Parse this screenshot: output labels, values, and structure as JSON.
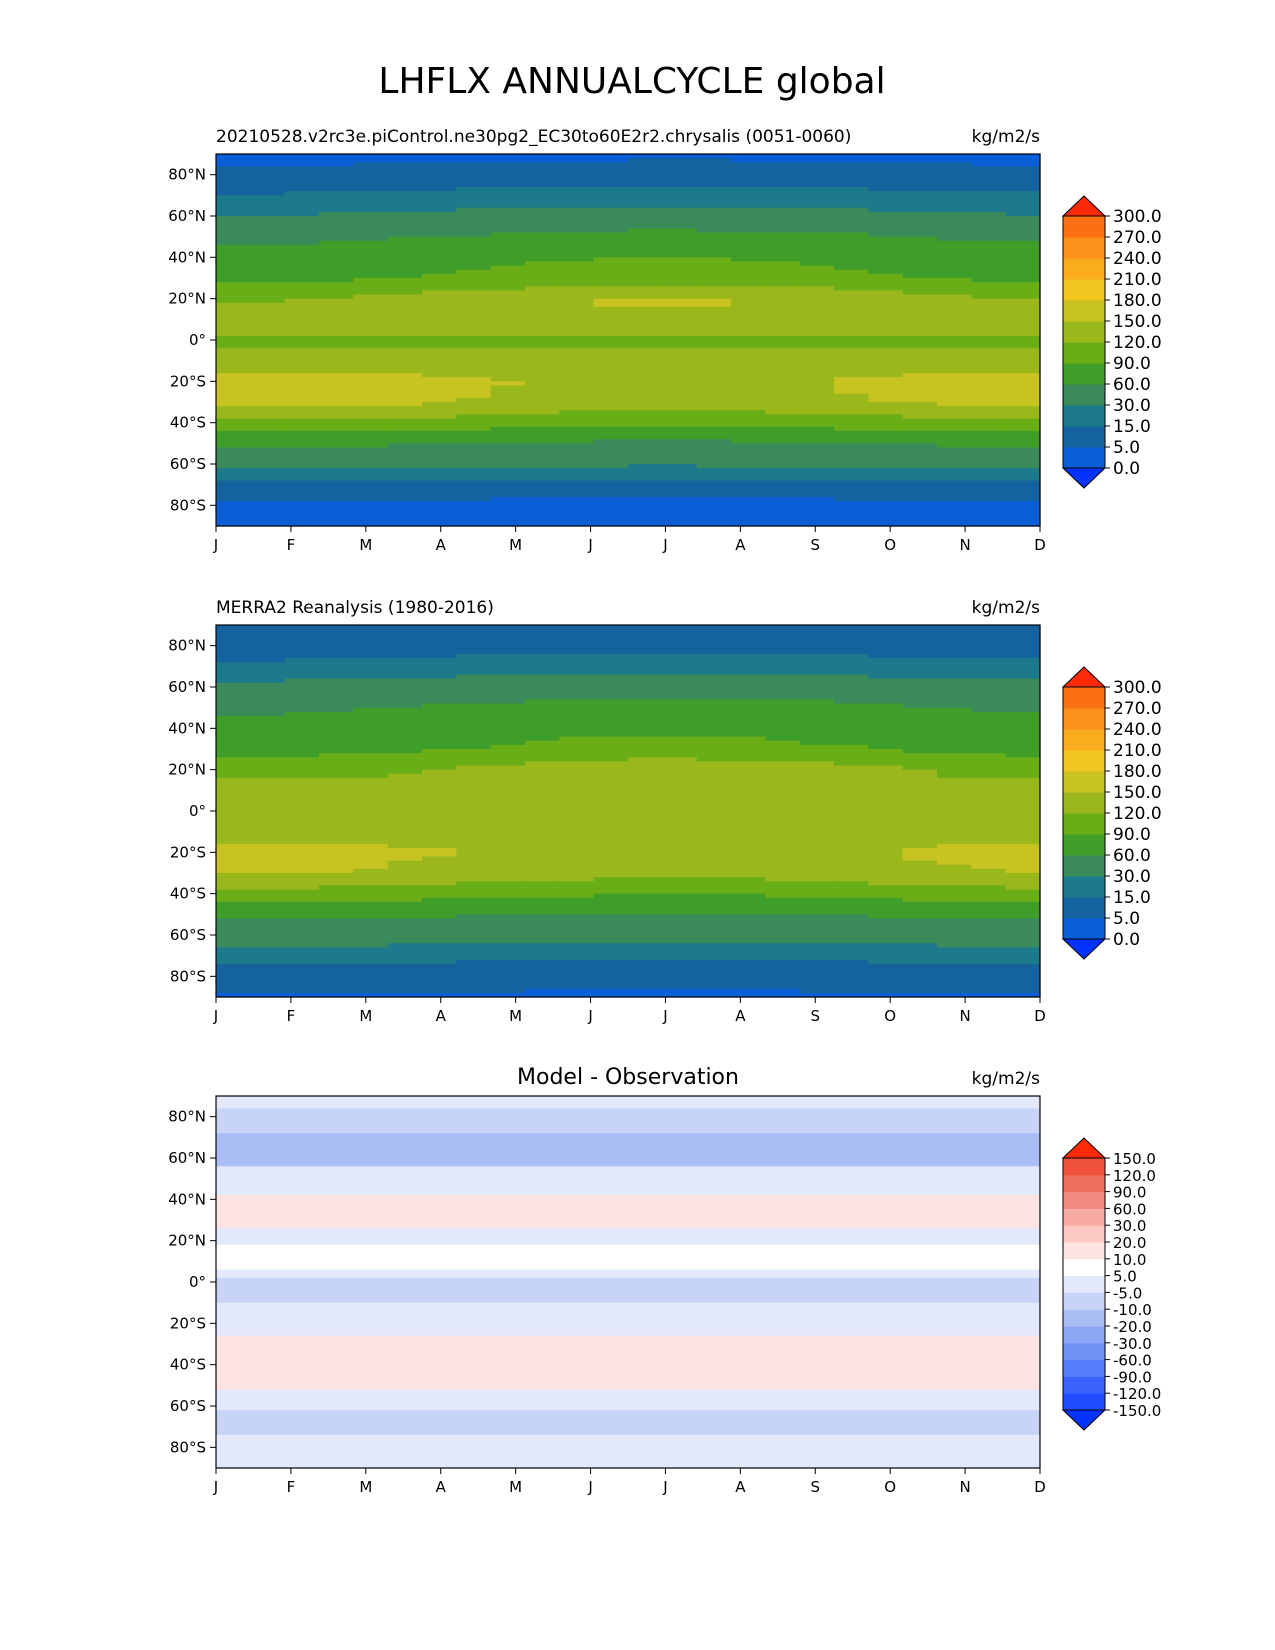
{
  "figure": {
    "title": "LHFLX ANNUALCYCLE global"
  },
  "axes_common": {
    "x_ticks": [
      "J",
      "F",
      "M",
      "A",
      "M",
      "J",
      "J",
      "A",
      "S",
      "O",
      "N",
      "D"
    ],
    "y_ticks": [
      "80°N",
      "60°N",
      "40°N",
      "20°N",
      "0°",
      "20°S",
      "40°S",
      "60°S",
      "80°S"
    ]
  },
  "chart_data": [
    {
      "type": "heatmap",
      "title_left": "20210528.v2rc3e.piControl.ne30pg2_EC30to60E2r2.chrysalis (0051-0060)",
      "title_center": "",
      "units": "kg/m2/s",
      "x_ticks": [
        "J",
        "F",
        "M",
        "A",
        "M",
        "J",
        "J",
        "A",
        "S",
        "O",
        "N",
        "D"
      ],
      "y_ticks": [
        "80°N",
        "60°N",
        "40°N",
        "20°N",
        "0°",
        "20°S",
        "40°S",
        "60°S",
        "80°S"
      ],
      "y_values": [
        80,
        60,
        40,
        20,
        0,
        -20,
        -40,
        -60,
        -80
      ],
      "ylim": [
        -90,
        90
      ],
      "colorbar": {
        "labels": [
          "0.0",
          "5.0",
          "15.0",
          "30.0",
          "60.0",
          "90.0",
          "120.0",
          "150.0",
          "180.0",
          "210.0",
          "240.0",
          "270.0",
          "300.0"
        ],
        "colors": [
          "#0433ff",
          "#0a5fd6",
          "#15639e",
          "#1d7a8a",
          "#3a8a5c",
          "#3f9e2a",
          "#6aae17",
          "#9ab81c",
          "#c7c321",
          "#f0c61f",
          "#f9ac1c",
          "#fb901a",
          "#fb7014",
          "#fc4e0f",
          "#fc2a06"
        ]
      },
      "zonal_profile": {
        "lat": [
          90,
          80,
          70,
          60,
          50,
          40,
          30,
          20,
          10,
          0,
          -10,
          -20,
          -30,
          -40,
          -50,
          -60,
          -70,
          -80,
          -90
        ],
        "value": [
          3,
          8,
          18,
          35,
          62,
          80,
          95,
          135,
          140,
          115,
          128,
          155,
          150,
          105,
          60,
          35,
          10,
          3,
          1
        ]
      }
    },
    {
      "type": "heatmap",
      "title_left": "MERRA2 Reanalysis (1980-2016)",
      "title_center": "",
      "units": "kg/m2/s",
      "x_ticks": [
        "J",
        "F",
        "M",
        "A",
        "M",
        "J",
        "J",
        "A",
        "S",
        "O",
        "N",
        "D"
      ],
      "y_ticks": [
        "80°N",
        "60°N",
        "40°N",
        "20°N",
        "0°",
        "20°S",
        "40°S",
        "60°S",
        "80°S"
      ],
      "y_values": [
        80,
        60,
        40,
        20,
        0,
        -20,
        -40,
        -60,
        -80
      ],
      "ylim": [
        -90,
        90
      ],
      "colorbar": {
        "labels": [
          "0.0",
          "5.0",
          "15.0",
          "30.0",
          "60.0",
          "90.0",
          "120.0",
          "150.0",
          "180.0",
          "210.0",
          "240.0",
          "270.0",
          "300.0"
        ],
        "colors": [
          "#0433ff",
          "#0a5fd6",
          "#15639e",
          "#1d7a8a",
          "#3a8a5c",
          "#3f9e2a",
          "#6aae17",
          "#9ab81c",
          "#c7c321",
          "#f0c61f",
          "#f9ac1c",
          "#fb901a",
          "#fb7014",
          "#fc4e0f",
          "#fc2a06"
        ]
      },
      "zonal_profile": {
        "lat": [
          90,
          80,
          70,
          60,
          50,
          40,
          30,
          20,
          10,
          0,
          -10,
          -20,
          -30,
          -40,
          -50,
          -60,
          -70,
          -80,
          -90
        ],
        "value": [
          8,
          10,
          20,
          40,
          65,
          75,
          90,
          125,
          135,
          125,
          130,
          150,
          140,
          100,
          62,
          40,
          18,
          8,
          4
        ]
      }
    },
    {
      "type": "heatmap",
      "title_left": "",
      "title_center": "Model - Observation",
      "units": "kg/m2/s",
      "x_ticks": [
        "J",
        "F",
        "M",
        "A",
        "M",
        "J",
        "J",
        "A",
        "S",
        "O",
        "N",
        "D"
      ],
      "y_ticks": [
        "80°N",
        "60°N",
        "40°N",
        "20°N",
        "0°",
        "20°S",
        "40°S",
        "60°S",
        "80°S"
      ],
      "y_values": [
        80,
        60,
        40,
        20,
        0,
        -20,
        -40,
        -60,
        -80
      ],
      "ylim": [
        -90,
        90
      ],
      "colorbar": {
        "labels": [
          "-150.0",
          "-120.0",
          "-90.0",
          "-60.0",
          "-30.0",
          "-20.0",
          "-10.0",
          "-5.0",
          "5.0",
          "10.0",
          "20.0",
          "30.0",
          "60.0",
          "90.0",
          "120.0",
          "150.0"
        ],
        "colors": [
          "#0433ff",
          "#1f4cff",
          "#3a64fc",
          "#567dfa",
          "#7191f7",
          "#8ea7f5",
          "#aabdf5",
          "#c8d4f7",
          "#e3e9fb",
          "#ffffff",
          "#fde4e2",
          "#fbc8c2",
          "#f8aba3",
          "#f48b80",
          "#f0705f",
          "#f0513b",
          "#f2361f",
          "#fc2a06"
        ]
      }
    }
  ]
}
